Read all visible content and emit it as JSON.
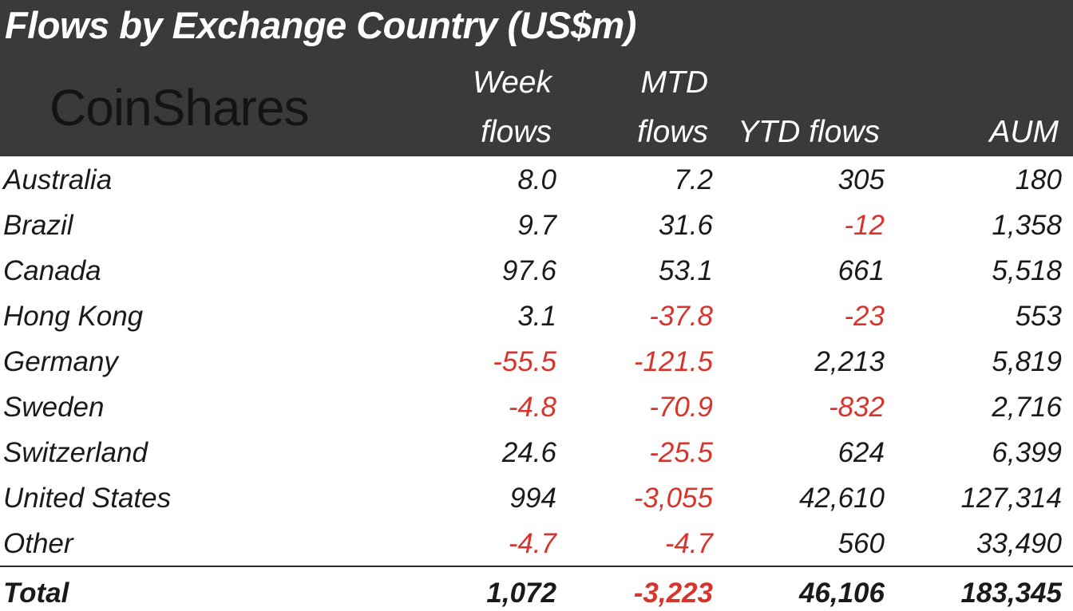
{
  "title": "Flows by Exchange Country (US$m)",
  "logo": "CoinShares",
  "colors": {
    "header_bg": "#3a3a3a",
    "header_text": "#ffffff",
    "negative": "#d9342b",
    "text": "#1a1a1a"
  },
  "chart_data": {
    "type": "table",
    "title": "Flows by Exchange Country (US$m)",
    "columns": [
      {
        "key": "week",
        "label_line1": "Week",
        "label_line2": "flows"
      },
      {
        "key": "mtd",
        "label_line1": "MTD",
        "label_line2": "flows"
      },
      {
        "key": "ytd",
        "label_line1": "",
        "label_line2": "YTD flows"
      },
      {
        "key": "aum",
        "label_line1": "",
        "label_line2": "AUM"
      }
    ],
    "rows": [
      {
        "country": "Australia",
        "week": "8.0",
        "mtd": "7.2",
        "ytd": "305",
        "aum": "180"
      },
      {
        "country": "Brazil",
        "week": "9.7",
        "mtd": "31.6",
        "ytd": "-12",
        "aum": "1,358"
      },
      {
        "country": "Canada",
        "week": "97.6",
        "mtd": "53.1",
        "ytd": "661",
        "aum": "5,518"
      },
      {
        "country": "Hong Kong",
        "week": "3.1",
        "mtd": "-37.8",
        "ytd": "-23",
        "aum": "553"
      },
      {
        "country": "Germany",
        "week": "-55.5",
        "mtd": "-121.5",
        "ytd": "2,213",
        "aum": "5,819"
      },
      {
        "country": "Sweden",
        "week": "-4.8",
        "mtd": "-70.9",
        "ytd": "-832",
        "aum": "2,716"
      },
      {
        "country": "Switzerland",
        "week": "24.6",
        "mtd": "-25.5",
        "ytd": "624",
        "aum": "6,399"
      },
      {
        "country": "United States",
        "week": "994",
        "mtd": "-3,055",
        "ytd": "42,610",
        "aum": "127,314"
      },
      {
        "country": "Other",
        "week": "-4.7",
        "mtd": "-4.7",
        "ytd": "560",
        "aum": "33,490"
      }
    ],
    "total": {
      "country": "Total",
      "week": "1,072",
      "mtd": "-3,223",
      "ytd": "46,106",
      "aum": "183,345"
    }
  }
}
